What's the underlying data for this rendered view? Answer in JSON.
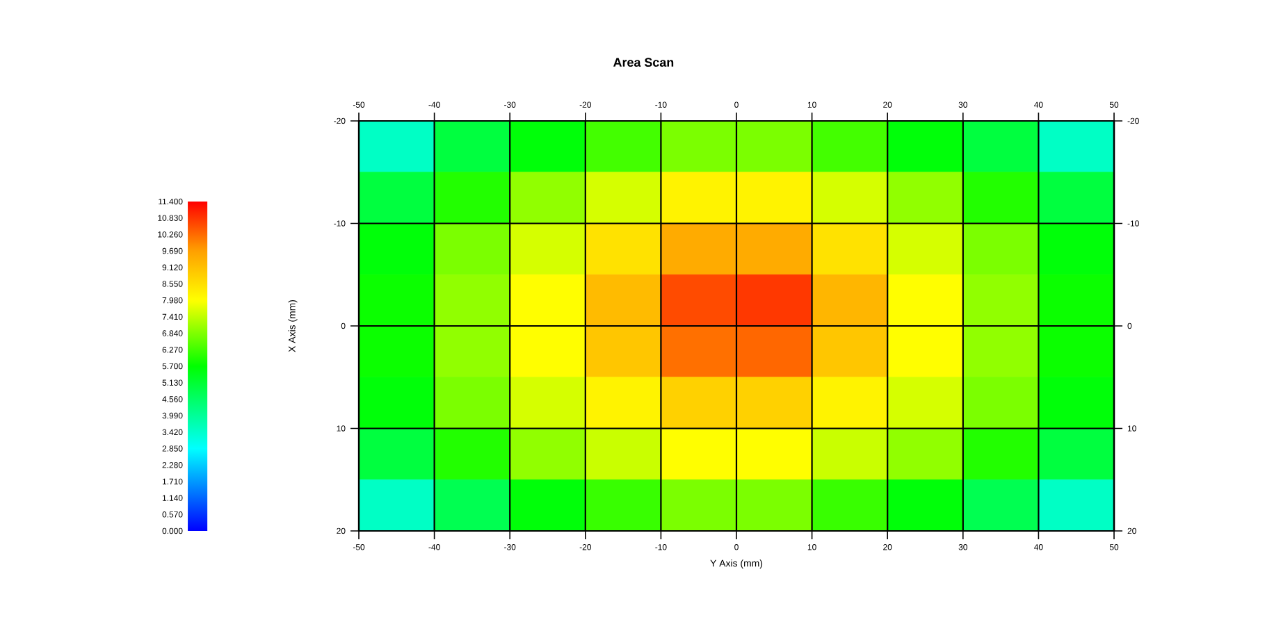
{
  "chart_data": {
    "type": "heatmap",
    "title": "Area Scan",
    "xlabel": "Y Axis (mm)",
    "ylabel": "X Axis (mm)",
    "x": [
      -45,
      -35,
      -25,
      -15,
      -5,
      5,
      15,
      25,
      35,
      45
    ],
    "y": [
      -17.5,
      -12.5,
      -7.5,
      -2.5,
      2.5,
      7.5,
      12.5,
      17.5
    ],
    "xlim": [
      -50,
      50
    ],
    "ylim": [
      20,
      -20
    ],
    "xticks": [
      -50,
      -40,
      -30,
      -20,
      -10,
      0,
      10,
      20,
      30,
      40,
      50
    ],
    "yticks": [
      -20,
      -10,
      0,
      10,
      20
    ],
    "x2lim": [
      -50,
      50
    ],
    "x2ticks": [
      -50,
      -40,
      -30,
      -20,
      -10,
      0,
      10,
      20,
      30,
      40,
      50
    ],
    "y2lim": [
      20,
      -20
    ],
    "y2ticks": [
      -20,
      -10,
      0,
      10,
      20
    ],
    "grid": true,
    "cells": [
      [
        3.5,
        5.0,
        5.6,
        6.3,
        6.8,
        6.8,
        6.3,
        5.6,
        5.0,
        3.5
      ],
      [
        5.0,
        6.0,
        7.0,
        7.6,
        8.2,
        8.2,
        7.6,
        7.0,
        6.0,
        5.0
      ],
      [
        5.6,
        6.8,
        7.6,
        8.5,
        9.5,
        9.5,
        8.5,
        7.6,
        6.8,
        5.6
      ],
      [
        5.8,
        7.0,
        8.0,
        9.2,
        10.6,
        10.8,
        9.3,
        8.0,
        7.0,
        5.8
      ],
      [
        5.8,
        7.0,
        8.0,
        9.0,
        10.2,
        10.3,
        9.0,
        8.0,
        7.0,
        5.8
      ],
      [
        5.6,
        6.8,
        7.6,
        8.2,
        8.8,
        8.8,
        8.2,
        7.6,
        6.8,
        5.6
      ],
      [
        5.0,
        6.0,
        7.0,
        7.5,
        8.0,
        8.0,
        7.5,
        7.0,
        6.0,
        5.0
      ],
      [
        3.5,
        4.8,
        5.6,
        6.2,
        6.8,
        6.8,
        6.2,
        5.6,
        4.8,
        3.5
      ]
    ],
    "clim": [
      0,
      11.4
    ],
    "cticks": [
      {
        "value": 0,
        "label": "0.000"
      },
      {
        "value": 0.57,
        "label": "0.570"
      },
      {
        "value": 1.14,
        "label": "1.140"
      },
      {
        "value": 1.71,
        "label": "1.710"
      },
      {
        "value": 2.28,
        "label": "2.280"
      },
      {
        "value": 2.85,
        "label": "2.850"
      },
      {
        "value": 3.42,
        "label": "3.420"
      },
      {
        "value": 3.99,
        "label": "3.990"
      },
      {
        "value": 4.56,
        "label": "4.560"
      },
      {
        "value": 5.13,
        "label": "5.130"
      },
      {
        "value": 5.7,
        "label": "5.700"
      },
      {
        "value": 6.27,
        "label": "6.270"
      },
      {
        "value": 6.84,
        "label": "6.840"
      },
      {
        "value": 7.41,
        "label": "7.410"
      },
      {
        "value": 7.98,
        "label": "7.980"
      },
      {
        "value": 8.55,
        "label": "8.550"
      },
      {
        "value": 9.12,
        "label": "9.120"
      },
      {
        "value": 9.69,
        "label": "9.690"
      },
      {
        "value": 10.26,
        "label": "10.260"
      },
      {
        "value": 10.83,
        "label": "10.830"
      },
      {
        "value": 11.4,
        "label": "11.400"
      }
    ]
  }
}
